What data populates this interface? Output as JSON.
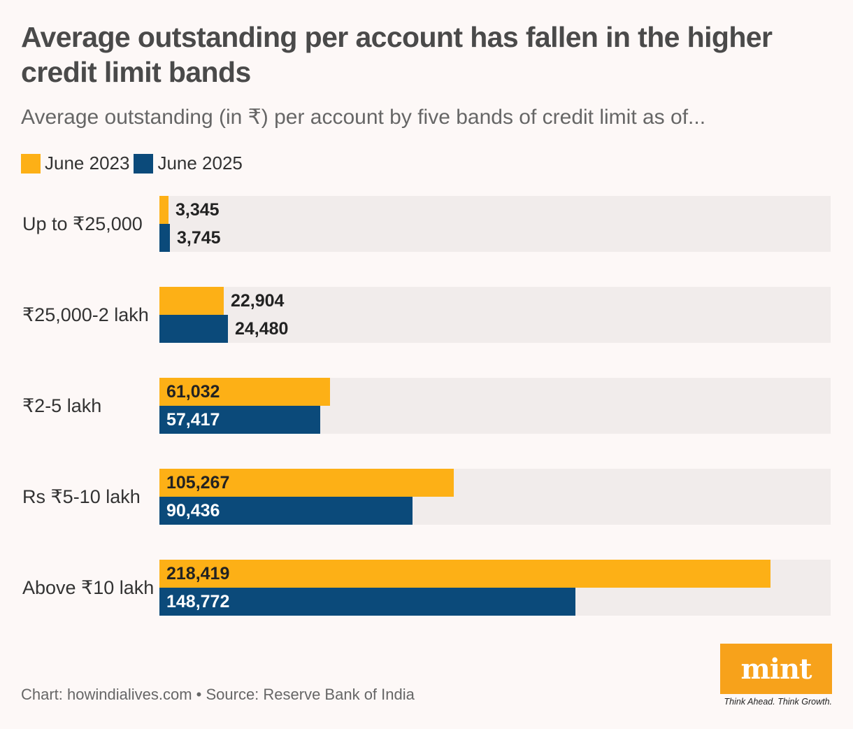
{
  "title": "Average outstanding per account has fallen in the higher credit limit bands",
  "subtitle": "Average outstanding (in ₹) per account by five bands of credit limit as of...",
  "legend": [
    {
      "label": "June 2023",
      "color": "#fdb016"
    },
    {
      "label": "June 2025",
      "color": "#0b4a7a"
    }
  ],
  "source": "Chart: howindialives.com • Source: Reserve Bank of India",
  "logo": {
    "text": "mint",
    "tagline": "Think Ahead. Think Growth."
  },
  "chart_data": {
    "type": "bar",
    "orientation": "horizontal",
    "categories": [
      "Up to ₹25,000",
      "₹25,000-2 lakh",
      "₹2-5 lakh",
      "Rs ₹5-10 lakh",
      "Above ₹10 lakh"
    ],
    "series": [
      {
        "name": "June 2023",
        "color": "#fdb016",
        "values": [
          3345,
          22904,
          61032,
          105267,
          218419
        ]
      },
      {
        "name": "June 2025",
        "color": "#0b4a7a",
        "values": [
          3745,
          24480,
          57417,
          90436,
          148772
        ]
      }
    ],
    "xlim": [
      0,
      240000
    ],
    "grid": false,
    "legend_position": "top-left"
  }
}
